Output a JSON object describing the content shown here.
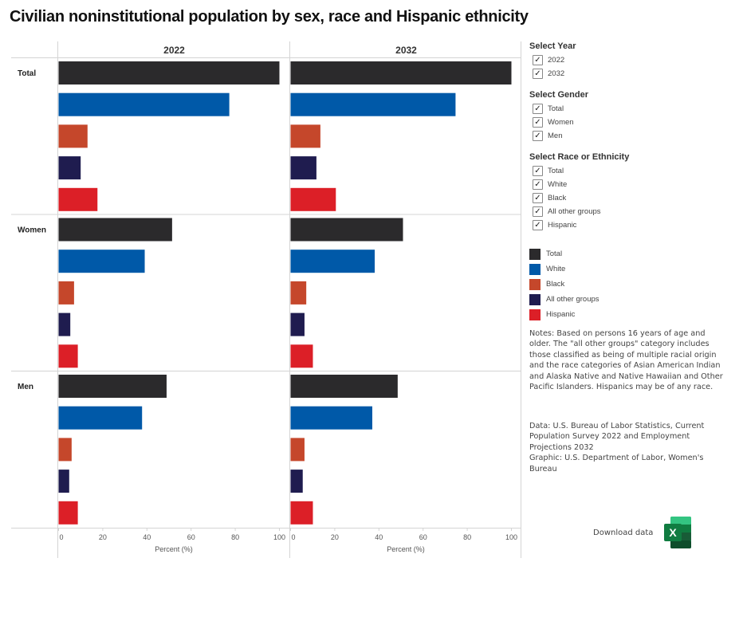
{
  "title": "Civilian noninstitutional population by sex, race and Hispanic ethnicity",
  "filters": [
    {
      "title": "Select Year",
      "items": [
        {
          "label": "2022",
          "checked": true
        },
        {
          "label": "2032",
          "checked": true
        }
      ]
    },
    {
      "title": "Select Gender",
      "items": [
        {
          "label": "Total",
          "checked": true
        },
        {
          "label": "Women",
          "checked": true
        },
        {
          "label": "Men",
          "checked": true
        }
      ]
    },
    {
      "title": "Select Race or Ethnicity",
      "items": [
        {
          "label": "Total",
          "checked": true
        },
        {
          "label": "White",
          "checked": true
        },
        {
          "label": "Black",
          "checked": true
        },
        {
          "label": "All other groups",
          "checked": true
        },
        {
          "label": "Hispanic",
          "checked": true
        }
      ]
    }
  ],
  "check_glyph": "✓",
  "notes": "Notes: Based on persons 16 years of age and older. The \"all other groups\" category includes those classified as being of multiple racial origin and the race categories of Asian American Indian and Alaska Native and Native Hawaiian and Other Pacific Islanders. Hispanics may be of any race.",
  "credits_data": "Data: U.S. Bureau of Labor Statistics, Current Population Survey 2022 and Employment Projections 2032",
  "credits_graphic": "Graphic: U.S. Department of Labor, Women's Bureau",
  "download": {
    "label": "Download data",
    "icon": "excel-icon",
    "icon_letter": "X"
  },
  "chart_data": {
    "type": "bar",
    "orientation": "horizontal",
    "title": "Civilian noninstitutional population by sex, race and Hispanic ethnicity",
    "xlabel": "Percent (%)",
    "xlim": [
      0,
      100
    ],
    "xticks": [
      0,
      20,
      40,
      60,
      80,
      100
    ],
    "panels": [
      "2022",
      "2032"
    ],
    "rows": [
      "Total",
      "Women",
      "Men"
    ],
    "legend": {
      "position": "right"
    },
    "series": [
      {
        "name": "Total",
        "color": "#2b2a2c",
        "values": {
          "2022": [
            100,
            51.4,
            48.9
          ],
          "2032": [
            100,
            50.9,
            48.5
          ]
        }
      },
      {
        "name": "White",
        "color": "#0059a8",
        "values": {
          "2022": [
            77.3,
            39.0,
            37.8
          ],
          "2032": [
            74.7,
            38.1,
            37.0
          ]
        }
      },
      {
        "name": "Black",
        "color": "#c5472b",
        "values": {
          "2022": [
            13.1,
            7.0,
            5.9
          ],
          "2032": [
            13.5,
            7.1,
            6.3
          ]
        }
      },
      {
        "name": "All other groups",
        "color": "#1f1c4f",
        "values": {
          "2022": [
            10.0,
            5.3,
            4.8
          ],
          "2032": [
            11.7,
            6.3,
            5.5
          ]
        }
      },
      {
        "name": "Hispanic",
        "color": "#dc1f27",
        "values": {
          "2022": [
            17.6,
            8.7,
            8.7
          ],
          "2032": [
            20.5,
            10.1,
            10.1
          ]
        }
      }
    ]
  }
}
